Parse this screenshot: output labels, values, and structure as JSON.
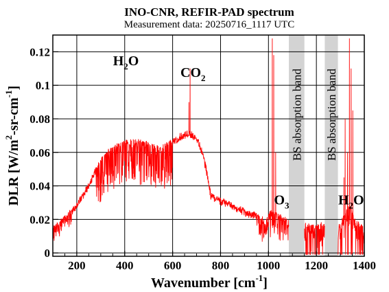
{
  "chart_data": {
    "type": "line",
    "title": "INO-CNR, REFIR-PAD spectrum",
    "subtitle": "Measurement data: 20250716_1117 UTC",
    "xlabel": {
      "main": "Wavenumber [cm",
      "sup": "-1",
      "end": "]"
    },
    "ylabel": {
      "p1": "DLR [W/m",
      "sup1": "2",
      "p2": "-sr-cm",
      "sup2": "-1",
      "p3": "]"
    },
    "xlim": [
      100,
      1400
    ],
    "ylim": [
      -0.002,
      0.13
    ],
    "xticks": [
      200,
      400,
      600,
      800,
      1000,
      1200,
      1400
    ],
    "xtick_labels": [
      "200",
      "400",
      "600",
      "800",
      "1000",
      "1200",
      "1400"
    ],
    "yticks": [
      0,
      0.02,
      0.04,
      0.06,
      0.08,
      0.1,
      0.12
    ],
    "ytick_labels": [
      "0",
      "0.02",
      "0.04",
      "0.06",
      "0.08",
      "0.1",
      "0.12"
    ],
    "grid": true,
    "series": [
      {
        "color": "#ff0000",
        "envelope": [
          [
            100,
            0.016
          ],
          [
            150,
            0.022
          ],
          [
            200,
            0.03
          ],
          [
            250,
            0.042
          ],
          [
            300,
            0.057
          ],
          [
            350,
            0.064
          ],
          [
            400,
            0.067
          ],
          [
            450,
            0.068
          ],
          [
            500,
            0.066
          ],
          [
            550,
            0.063
          ],
          [
            600,
            0.068
          ],
          [
            640,
            0.072
          ],
          [
            670,
            0.073
          ],
          [
            700,
            0.07
          ],
          [
            720,
            0.064
          ],
          [
            740,
            0.052
          ],
          [
            760,
            0.036
          ],
          [
            800,
            0.033
          ],
          [
            850,
            0.03
          ],
          [
            900,
            0.026
          ],
          [
            950,
            0.024
          ],
          [
            990,
            0.02
          ],
          [
            1010,
            0.026
          ],
          [
            1030,
            0.024
          ],
          [
            1060,
            0.022
          ],
          [
            1085,
            0.02
          ],
          [
            1150,
            0.018
          ],
          [
            1200,
            0.017
          ],
          [
            1250,
            0.018
          ],
          [
            1300,
            0.018
          ],
          [
            1340,
            0.03
          ],
          [
            1360,
            0.02
          ],
          [
            1400,
            0.016
          ]
        ],
        "spikes": [
          [
            673,
            0.11
          ],
          [
            668,
            0.09
          ],
          [
            1016,
            0.128
          ],
          [
            1022,
            0.118
          ],
          [
            1030,
            0.06
          ],
          [
            1315,
            0.045
          ],
          [
            1320,
            0.08
          ],
          [
            1338,
            0.128
          ],
          [
            1345,
            0.11
          ],
          [
            1352,
            0.085
          ],
          [
            1330,
            0.06
          ]
        ]
      }
    ],
    "shaded_bands": [
      {
        "x0": 1085,
        "x1": 1150,
        "color": "#d3d3d3",
        "label": "BS absorption band"
      },
      {
        "x0": 1235,
        "x1": 1290,
        "color": "#d3d3d3",
        "label": "BS absorption band"
      }
    ],
    "annotations": [
      {
        "base": "H",
        "sub": "2",
        "tail": "O",
        "x": 405,
        "y": 0.112
      },
      {
        "base": "CO",
        "sub": "2",
        "tail": "",
        "x": 685,
        "y": 0.105
      },
      {
        "base": "O",
        "sub": "3",
        "tail": "",
        "x": 1055,
        "y": 0.029
      },
      {
        "base": "H",
        "sub": "2",
        "tail": "O",
        "x": 1345,
        "y": 0.029
      }
    ]
  }
}
